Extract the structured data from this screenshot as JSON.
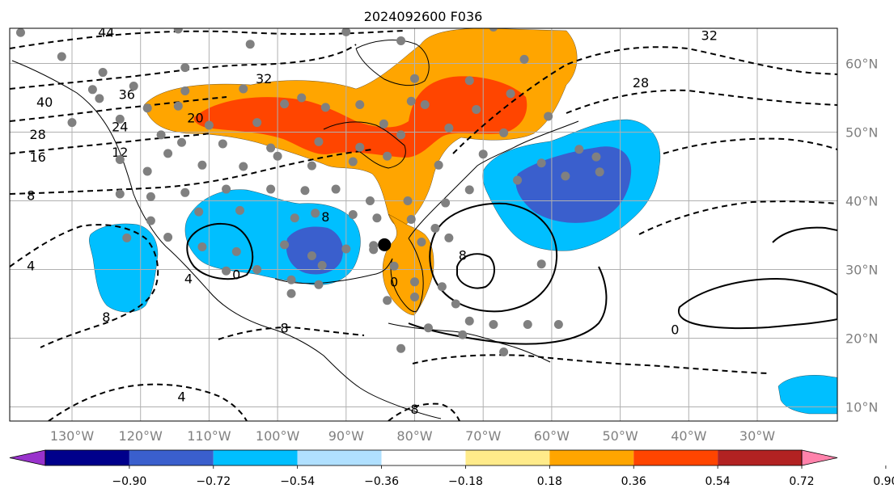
{
  "title": "2024092600 F036",
  "map": {
    "lon_labels": [
      "130°W",
      "120°W",
      "110°W",
      "100°W",
      "90°W",
      "80°W",
      "70°W",
      "60°W",
      "50°W",
      "40°W",
      "30°W"
    ],
    "lat_labels": [
      "60°N",
      "50°N",
      "40°N",
      "30°N",
      "20°N",
      "10°N"
    ],
    "grid": true,
    "label_color": "#808080",
    "contour_labels": [
      {
        "text": "44",
        "lon": -125,
        "lat": 64.5
      },
      {
        "text": "40",
        "lon": -134,
        "lat": 54.3
      },
      {
        "text": "36",
        "lon": -122,
        "lat": 55.4
      },
      {
        "text": "32",
        "lon": -102,
        "lat": 57.7
      },
      {
        "text": "28",
        "lon": -135,
        "lat": 49.6
      },
      {
        "text": "24",
        "lon": -123,
        "lat": 50.7
      },
      {
        "text": "20",
        "lon": -112,
        "lat": 52.0
      },
      {
        "text": "16",
        "lon": -135,
        "lat": 46.3
      },
      {
        "text": "12",
        "lon": -123,
        "lat": 47.0
      },
      {
        "text": "8",
        "lon": -136,
        "lat": 40.7
      },
      {
        "text": "4",
        "lon": -136,
        "lat": 30.5
      },
      {
        "text": "4",
        "lon": -113,
        "lat": 28.6
      },
      {
        "text": "8",
        "lon": -125,
        "lat": 23.0
      },
      {
        "text": "0",
        "lon": -106,
        "lat": 29.2
      },
      {
        "text": "8",
        "lon": -93,
        "lat": 37.6
      },
      {
        "text": "0",
        "lon": -83,
        "lat": 28.1
      },
      {
        "text": "8",
        "lon": -99,
        "lat": 21.4
      },
      {
        "text": "8",
        "lon": -73,
        "lat": 32.0
      },
      {
        "text": "4",
        "lon": -114,
        "lat": 11.4
      },
      {
        "text": "8",
        "lon": -80,
        "lat": 9.6
      },
      {
        "text": "0",
        "lon": -42,
        "lat": 21.2
      },
      {
        "text": "28",
        "lon": -47,
        "lat": 57.1
      },
      {
        "text": "32",
        "lon": -37,
        "lat": 64.0
      }
    ],
    "station_marker_color": "#808080",
    "center_marker": {
      "lon": -84.4,
      "lat": 33.6,
      "color": "#000000"
    }
  },
  "colorbar": {
    "tick_labels": [
      "−0.90",
      "−0.72",
      "−0.54",
      "−0.36",
      "−0.18",
      "0.18",
      "0.36",
      "0.54",
      "0.72",
      "0.90"
    ],
    "colors": [
      "#9932cc",
      "#00008b",
      "#3a5fcd",
      "#00bfff",
      "#b0e0ff",
      "#ffffff",
      "#ffeb8a",
      "#ffa500",
      "#ff4500",
      "#b22222",
      "#ff82ab"
    ]
  },
  "chart_data": {
    "type": "heatmap",
    "title": "2024092600 F036",
    "xlabel": "",
    "ylabel": "",
    "x_range": [
      -140,
      -20
    ],
    "y_range": [
      8,
      65
    ],
    "colorbar_bounds": [
      -0.9,
      -0.72,
      -0.54,
      -0.36,
      -0.18,
      0.18,
      0.36,
      0.54,
      0.72,
      0.9
    ],
    "legend_placement": "bottom",
    "grid": true
  }
}
